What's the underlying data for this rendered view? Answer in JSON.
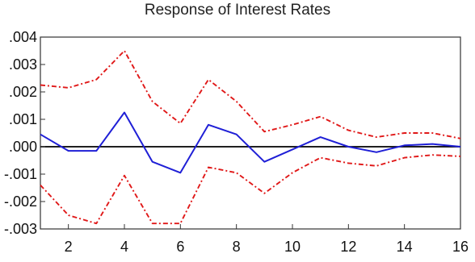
{
  "chart_data": {
    "type": "line",
    "title": "Response of Interest Rates",
    "xlabel": "",
    "ylabel": "",
    "xlim": [
      1,
      16
    ],
    "ylim": [
      -0.003,
      0.004
    ],
    "x": [
      1,
      2,
      3,
      4,
      5,
      6,
      7,
      8,
      9,
      10,
      11,
      12,
      13,
      14,
      15,
      16
    ],
    "x_ticks": [
      2,
      4,
      6,
      8,
      10,
      12,
      14,
      16
    ],
    "x_tick_labels": [
      "2",
      "4",
      "6",
      "8",
      "10",
      "12",
      "14",
      "16"
    ],
    "y_ticks": [
      0.004,
      0.003,
      0.002,
      0.001,
      0.0,
      -0.001,
      -0.002,
      -0.003
    ],
    "y_tick_labels": [
      ".004",
      ".003",
      ".002",
      ".001",
      ".000",
      "-.001",
      "-.002",
      "-.003"
    ],
    "zero_line": true,
    "grid": false,
    "legend": "none",
    "series": [
      {
        "role": "response",
        "color": "#1f1fd6",
        "style": "solid",
        "values": [
          0.00045,
          -0.00015,
          -0.00015,
          0.00125,
          -0.00055,
          -0.00095,
          0.0008,
          0.00045,
          -0.00055,
          -0.0001,
          0.00035,
          0.0,
          -0.0002,
          5e-05,
          0.0001,
          0.0
        ]
      },
      {
        "role": "upper-band",
        "color": "#e01818",
        "style": "dashed",
        "values": [
          0.00225,
          0.00215,
          0.00245,
          0.0035,
          0.00165,
          0.00085,
          0.00245,
          0.00165,
          0.00055,
          0.0008,
          0.0011,
          0.0006,
          0.00035,
          0.0005,
          0.0005,
          0.0003
        ]
      },
      {
        "role": "lower-band",
        "color": "#e01818",
        "style": "dashed",
        "values": [
          -0.0014,
          -0.0025,
          -0.0028,
          -0.00105,
          -0.0028,
          -0.0028,
          -0.00075,
          -0.00095,
          -0.0017,
          -0.00095,
          -0.0004,
          -0.0006,
          -0.0007,
          -0.0004,
          -0.0003,
          -0.00035
        ]
      }
    ]
  }
}
